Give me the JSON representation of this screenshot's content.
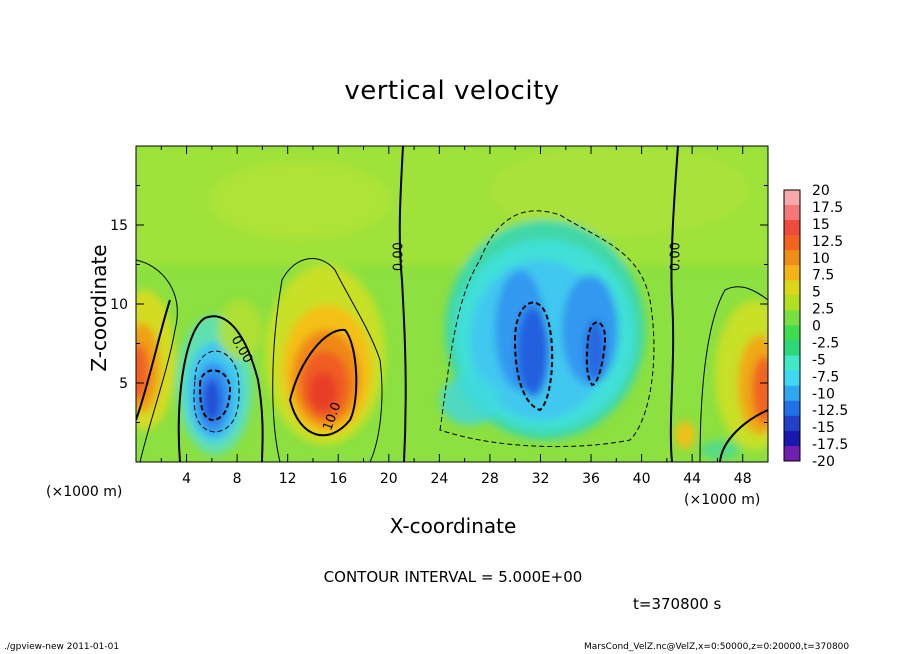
{
  "chart_data": {
    "type": "heatmap",
    "title": "vertical velocity",
    "xlabel": "X-coordinate",
    "ylabel": "Z-coordinate",
    "x_unit_label": "(×1000 m)",
    "xlim": [
      0,
      50
    ],
    "ylim": [
      0,
      20
    ],
    "x_ticks": [
      "4",
      "8",
      "12",
      "16",
      "20",
      "24",
      "28",
      "32",
      "36",
      "40",
      "44",
      "48"
    ],
    "y_ticks": [
      "5",
      "10",
      "15"
    ],
    "colorbar_levels": [
      "20",
      "17.5",
      "15",
      "12.5",
      "10",
      "7.5",
      "5",
      "2.5",
      "0",
      "-2.5",
      "-5",
      "-7.5",
      "-10",
      "-12.5",
      "-15",
      "-17.5",
      "-20"
    ],
    "colorbar_colors": [
      "#f8a8a8",
      "#f47878",
      "#f04a3c",
      "#f06420",
      "#f08c18",
      "#f4b418",
      "#d8d818",
      "#b0e020",
      "#78e040",
      "#40dc50",
      "#2cd878",
      "#40e8c8",
      "#40d8f0",
      "#30a8f0",
      "#2070e8",
      "#2040c8",
      "#1818b0",
      "#7020b0"
    ],
    "contour_interval_text": "CONTOUR INTERVAL = 5.000E+00",
    "contour_labels": [
      "0.00",
      "0.00",
      "0.00",
      "10.0"
    ],
    "time_text": "t=370800  s",
    "features": [
      {
        "x": 6,
        "z": 4,
        "value": -12,
        "kind": "downdraft"
      },
      {
        "x": 15,
        "z": 5.5,
        "value": 13,
        "kind": "updraft"
      },
      {
        "x": 31,
        "z": 6,
        "value": -11,
        "kind": "downdraft"
      },
      {
        "x": 36,
        "z": 6,
        "value": -10,
        "kind": "downdraft"
      },
      {
        "x": 1,
        "z": 6,
        "value": 12,
        "kind": "updraft"
      },
      {
        "x": 49.5,
        "z": 4.5,
        "value": 12,
        "kind": "updraft"
      }
    ]
  },
  "footer": {
    "left": "./gpview-new   2011-01-01",
    "right": "MarsCond_VelZ.nc@VelZ,x=0:50000,z=0:20000,t=370800"
  }
}
